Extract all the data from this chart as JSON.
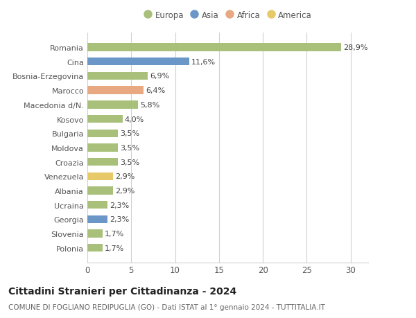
{
  "categories": [
    "Romania",
    "Cina",
    "Bosnia-Erzegovina",
    "Marocco",
    "Macedonia d/N.",
    "Kosovo",
    "Bulgaria",
    "Moldova",
    "Croazia",
    "Venezuela",
    "Albania",
    "Ucraina",
    "Georgia",
    "Slovenia",
    "Polonia"
  ],
  "values": [
    28.9,
    11.6,
    6.9,
    6.4,
    5.8,
    4.0,
    3.5,
    3.5,
    3.5,
    2.9,
    2.9,
    2.3,
    2.3,
    1.7,
    1.7
  ],
  "labels": [
    "28,9%",
    "11,6%",
    "6,9%",
    "6,4%",
    "5,8%",
    "4,0%",
    "3,5%",
    "3,5%",
    "3,5%",
    "2,9%",
    "2,9%",
    "2,3%",
    "2,3%",
    "1,7%",
    "1,7%"
  ],
  "continents": [
    "Europa",
    "Asia",
    "Europa",
    "Africa",
    "Europa",
    "Europa",
    "Europa",
    "Europa",
    "Europa",
    "America",
    "Europa",
    "Europa",
    "Asia",
    "Europa",
    "Europa"
  ],
  "colors": {
    "Europa": "#a8c07a",
    "Asia": "#6b96c8",
    "Africa": "#e8a882",
    "America": "#e8c96a"
  },
  "legend_order": [
    "Europa",
    "Asia",
    "Africa",
    "America"
  ],
  "xlim": [
    0,
    32
  ],
  "xticks": [
    0,
    5,
    10,
    15,
    20,
    25,
    30
  ],
  "title": "Cittadini Stranieri per Cittadinanza - 2024",
  "subtitle": "COMUNE DI FOGLIANO REDIPUGLIA (GO) - Dati ISTAT al 1° gennaio 2024 - TUTTITALIA.IT",
  "background_color": "#ffffff",
  "bar_height": 0.55,
  "grid_color": "#d0d0d0",
  "label_fontsize": 8.0,
  "ytick_fontsize": 8.0,
  "xtick_fontsize": 8.5,
  "title_fontsize": 10,
  "subtitle_fontsize": 7.5,
  "legend_fontsize": 8.5
}
